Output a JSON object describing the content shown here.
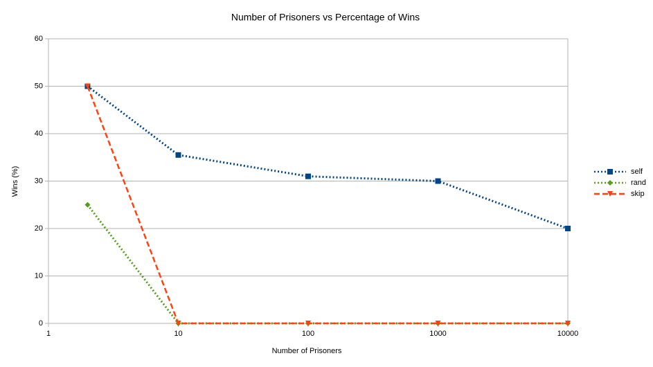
{
  "chart_data": {
    "type": "line",
    "title": "Number of Prisoners vs Percentage of Wins",
    "xlabel": "Number of Prisoners",
    "ylabel": "Wins (%)",
    "xscale": "log",
    "x": [
      2,
      10,
      100,
      1000,
      10000
    ],
    "series": [
      {
        "name": "self",
        "color": "#004586",
        "dash": "dotted",
        "marker": "square",
        "values": [
          50,
          35.5,
          31,
          30,
          20
        ]
      },
      {
        "name": "rand",
        "color": "#579d1c",
        "dash": "dotted",
        "marker": "diamond",
        "values": [
          25,
          0,
          0,
          0,
          0
        ]
      },
      {
        "name": "skip",
        "color": "#ff420e",
        "dash": "dashed",
        "marker": "triangle-down",
        "values": [
          50,
          0,
          0,
          0,
          0
        ]
      }
    ],
    "xlim": [
      1,
      10000
    ],
    "xticks": [
      1,
      10,
      100,
      1000,
      10000
    ],
    "ylim": [
      0,
      60
    ],
    "yticks": [
      0,
      10,
      20,
      30,
      40,
      50,
      60
    ],
    "grid": true,
    "legend": "right"
  }
}
